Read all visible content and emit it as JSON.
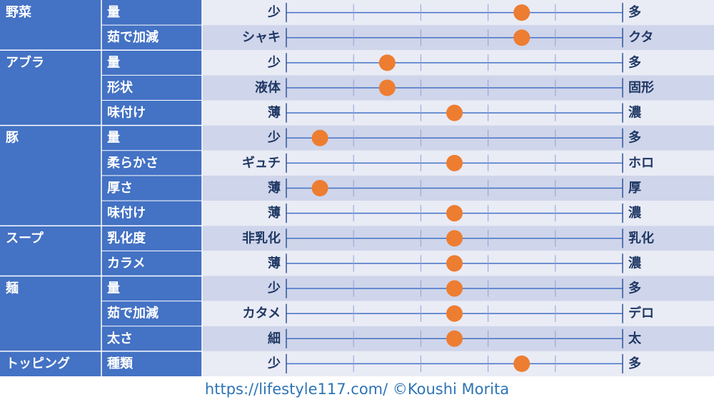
{
  "chart_data": {
    "type": "table",
    "scale": [
      0,
      5
    ],
    "marker_color": "#ED7D31",
    "header_color": "#4472C4",
    "row_color_light": "#E9EBF5",
    "row_color_dark": "#CFD5EA",
    "groups": [
      {
        "name": "野菜",
        "rows": [
          {
            "label": "量",
            "left": "少",
            "right": "多",
            "value": 3.5
          },
          {
            "label": "茹で加減",
            "left": "シャキ",
            "right": "クタ",
            "value": 3.5
          }
        ]
      },
      {
        "name": "アブラ",
        "rows": [
          {
            "label": "量",
            "left": "少",
            "right": "多",
            "value": 1.5
          },
          {
            "label": "形状",
            "left": "液体",
            "right": "固形",
            "value": 1.5
          },
          {
            "label": "味付け",
            "left": "薄",
            "right": "濃",
            "value": 2.5
          }
        ]
      },
      {
        "name": "豚",
        "rows": [
          {
            "label": "量",
            "left": "少",
            "right": "多",
            "value": 0.5
          },
          {
            "label": "柔らかさ",
            "left": "ギュチ",
            "right": "ホロ",
            "value": 2.5
          },
          {
            "label": "厚さ",
            "left": "薄",
            "right": "厚",
            "value": 0.5
          },
          {
            "label": "味付け",
            "left": "薄",
            "right": "濃",
            "value": 2.5
          }
        ]
      },
      {
        "name": "スープ",
        "rows": [
          {
            "label": "乳化度",
            "left": "非乳化",
            "right": "乳化",
            "value": 2.5
          },
          {
            "label": "カラメ",
            "left": "薄",
            "right": "濃",
            "value": 2.5
          }
        ]
      },
      {
        "name": "麺",
        "rows": [
          {
            "label": "量",
            "left": "少",
            "right": "多",
            "value": 2.5
          },
          {
            "label": "茹で加減",
            "left": "カタメ",
            "right": "デロ",
            "value": 2.5
          },
          {
            "label": "太さ",
            "left": "細",
            "right": "太",
            "value": 2.5
          }
        ]
      },
      {
        "name": "トッピング",
        "rows": [
          {
            "label": "種類",
            "left": "少",
            "right": "多",
            "value": 3.5
          }
        ]
      }
    ]
  },
  "footer": {
    "text": "https://lifestyle117.com/ ©Koushi Morita"
  }
}
